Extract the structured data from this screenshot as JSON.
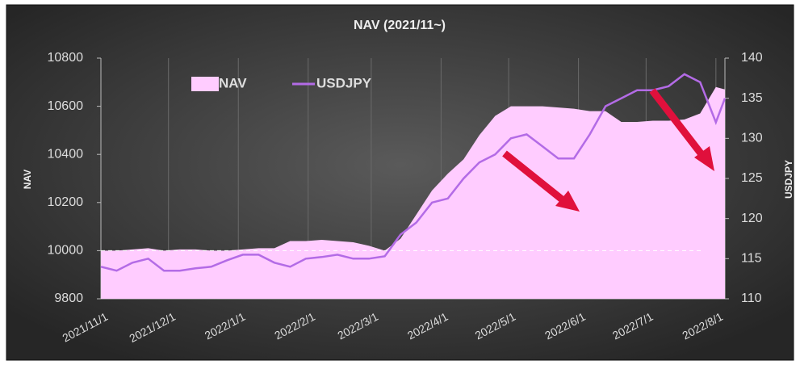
{
  "chart_data": {
    "type": "area-line",
    "title": "NAV (2021/11~)",
    "ylabel": "NAV",
    "y2label": "USDJPY",
    "x": [
      "2021/11/1",
      "2021/11/8",
      "2021/11/15",
      "2021/11/22",
      "2021/11/29",
      "2021/12/6",
      "2021/12/13",
      "2021/12/20",
      "2021/12/27",
      "2022/1/3",
      "2022/1/10",
      "2022/1/17",
      "2022/1/24",
      "2022/1/31",
      "2022/2/7",
      "2022/2/14",
      "2022/2/21",
      "2022/2/28",
      "2022/3/7",
      "2022/3/14",
      "2022/3/21",
      "2022/3/28",
      "2022/4/4",
      "2022/4/11",
      "2022/4/18",
      "2022/4/25",
      "2022/5/2",
      "2022/5/9",
      "2022/5/16",
      "2022/5/23",
      "2022/5/30",
      "2022/6/6",
      "2022/6/13",
      "2022/6/20",
      "2022/6/27",
      "2022/7/4",
      "2022/7/11",
      "2022/7/18",
      "2022/7/25",
      "2022/8/1",
      "2022/8/5"
    ],
    "series": [
      {
        "name": "NAV",
        "color": "#ffccff",
        "axis": "y",
        "values": [
          10000,
          10000,
          10005,
          10010,
          10000,
          10005,
          10005,
          10000,
          10000,
          10005,
          10010,
          10010,
          10040,
          10040,
          10045,
          10040,
          10035,
          10020,
          10000,
          10050,
          10150,
          10250,
          10320,
          10380,
          10480,
          10560,
          10600,
          10600,
          10600,
          10595,
          10590,
          10580,
          10580,
          10535,
          10535,
          10540,
          10540,
          10545,
          10570,
          10680,
          10670
        ]
      },
      {
        "name": "USDJPY",
        "color": "#b36be6",
        "axis": "y2",
        "values": [
          114,
          113.5,
          114.5,
          115,
          113.5,
          113.5,
          113.8,
          114,
          114.8,
          115.5,
          115.5,
          114.5,
          114,
          115,
          115.2,
          115.5,
          115,
          115,
          115.3,
          118,
          119.5,
          122,
          122.5,
          125,
          127,
          128,
          130,
          130.5,
          129,
          127.5,
          127.5,
          130.5,
          134,
          135,
          136,
          136,
          136.5,
          138,
          137,
          132,
          135
        ]
      }
    ],
    "xlim": [
      "2021/11/1",
      "2022/8/5"
    ],
    "xticks": [
      "2021/11/1",
      "2021/12/1",
      "2022/1/1",
      "2022/2/1",
      "2022/3/1",
      "2022/4/1",
      "2022/5/1",
      "2022/6/1",
      "2022/7/1",
      "2022/8/1"
    ],
    "ylim": [
      9800,
      10800
    ],
    "yticks": [
      9800,
      10000,
      10200,
      10400,
      10600,
      10800
    ],
    "y2lim": [
      110,
      140
    ],
    "y2ticks": [
      110,
      115,
      120,
      125,
      130,
      135,
      140
    ],
    "reference_line": 10000,
    "grid": true
  }
}
